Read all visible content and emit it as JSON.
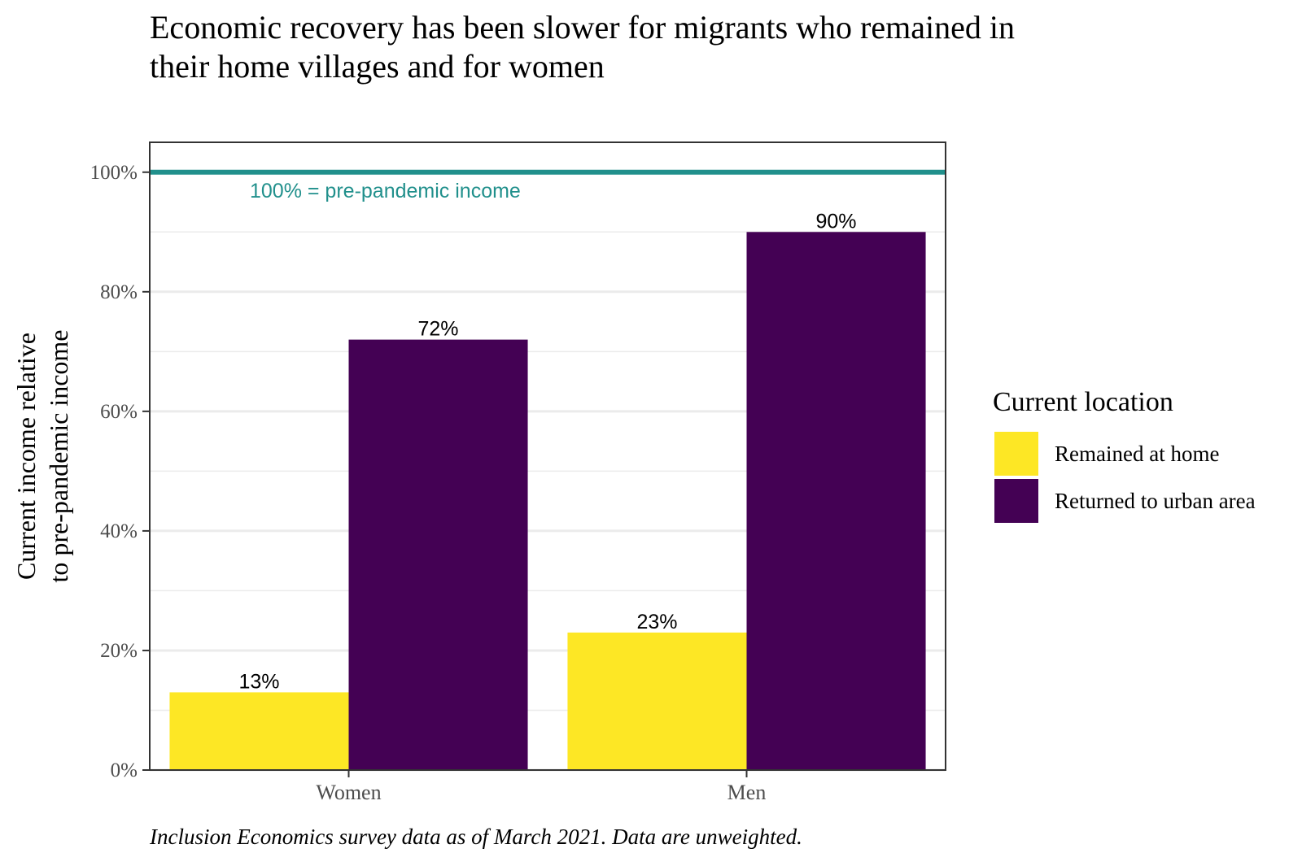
{
  "chart_data": {
    "type": "bar",
    "title": "Economic recovery has been slower for migrants who remained in\n their home villages and for women",
    "ylabel_lines": [
      "Current income relative",
      "to pre-pandemic income"
    ],
    "xlabel": "",
    "categories": [
      "Women",
      "Men"
    ],
    "series": [
      {
        "name": "Remained at home",
        "values": [
          13,
          23
        ],
        "labels": [
          "13%",
          "23%"
        ],
        "color": "#FDE725"
      },
      {
        "name": "Returned to urban area",
        "values": [
          72,
          90
        ],
        "labels": [
          "72%",
          "90%"
        ],
        "color": "#440154"
      }
    ],
    "ylim": [
      0,
      105
    ],
    "y_ticks": [
      0,
      20,
      40,
      60,
      80,
      100
    ],
    "y_tick_labels": [
      "0%",
      "20%",
      "40%",
      "60%",
      "80%",
      "100%"
    ],
    "reference_line": {
      "value": 100,
      "label": "100% = pre-pandemic income",
      "color": "#21908C"
    },
    "legend": {
      "title": "Current location",
      "placement": "right"
    },
    "grid": true,
    "caption": "Inclusion Economics survey data as of March 2021. Data are unweighted."
  }
}
